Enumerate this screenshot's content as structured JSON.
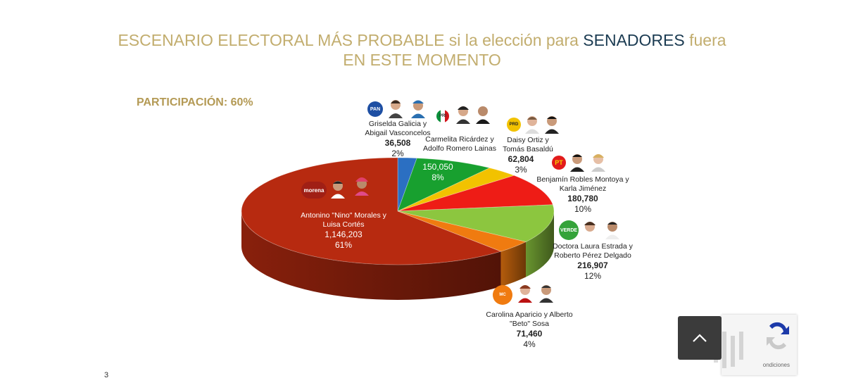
{
  "title": {
    "line1_part1": "ESCENARIO ELECTORAL MÁS PROBABLE si la elección para ",
    "line1_highlight": "SENADORES",
    "line1_part2": " fuera",
    "line2": "EN ESTE MOMENTO"
  },
  "participation": "PARTICIPACIÓN: 60%",
  "page_number": "3",
  "recaptcha_text": "ondiciones",
  "chart_data": {
    "type": "pie",
    "slices": [
      {
        "party": "PAN",
        "label_line1": "Griselda Galicia y",
        "label_line2": "Abigail Vasconcelos",
        "votes": "36,508",
        "value": 36508,
        "percent": "2%",
        "color": "#2b6fc2"
      },
      {
        "party": "PRI",
        "label_line1": "Carmelita Ricárdez y",
        "label_line2": "Adolfo Romero Lainas",
        "votes": "150,050",
        "value": 150050,
        "percent": "8%",
        "color": "#18a02f"
      },
      {
        "party": "PRD",
        "label_line1": "Daisy Ortiz y",
        "label_line2": "Tomás Basaldú",
        "votes": "62,804",
        "value": 62804,
        "percent": "3%",
        "color": "#f2c200"
      },
      {
        "party": "PT",
        "label_line1": "Benjamín Robles Montoya y",
        "label_line2": "Karla Jiménez",
        "votes": "180,780",
        "value": 180780,
        "percent": "10%",
        "color": "#ee1c16"
      },
      {
        "party": "VERDE",
        "label_line1": "Doctora Laura Estrada y",
        "label_line2": "Roberto Pérez Delgado",
        "votes": "216,907",
        "value": 216907,
        "percent": "12%",
        "color": "#8cc63f"
      },
      {
        "party": "MC",
        "label_line1": "Carolina Aparicio y Alberto",
        "label_line2": "\"Beto\" Sosa",
        "votes": "71,460",
        "value": 71460,
        "percent": "4%",
        "color": "#f07b10"
      },
      {
        "party": "morena",
        "label_line1": "Antonino \"Nino\" Morales y",
        "label_line2": "Luisa Cortés",
        "votes": "1,146,203",
        "value": 1146203,
        "percent": "61%",
        "color": "#b72a10"
      }
    ]
  },
  "colors": {
    "title": "#c2ad6e",
    "title_highlight": "#1b3b52",
    "participation": "#b49a55"
  }
}
